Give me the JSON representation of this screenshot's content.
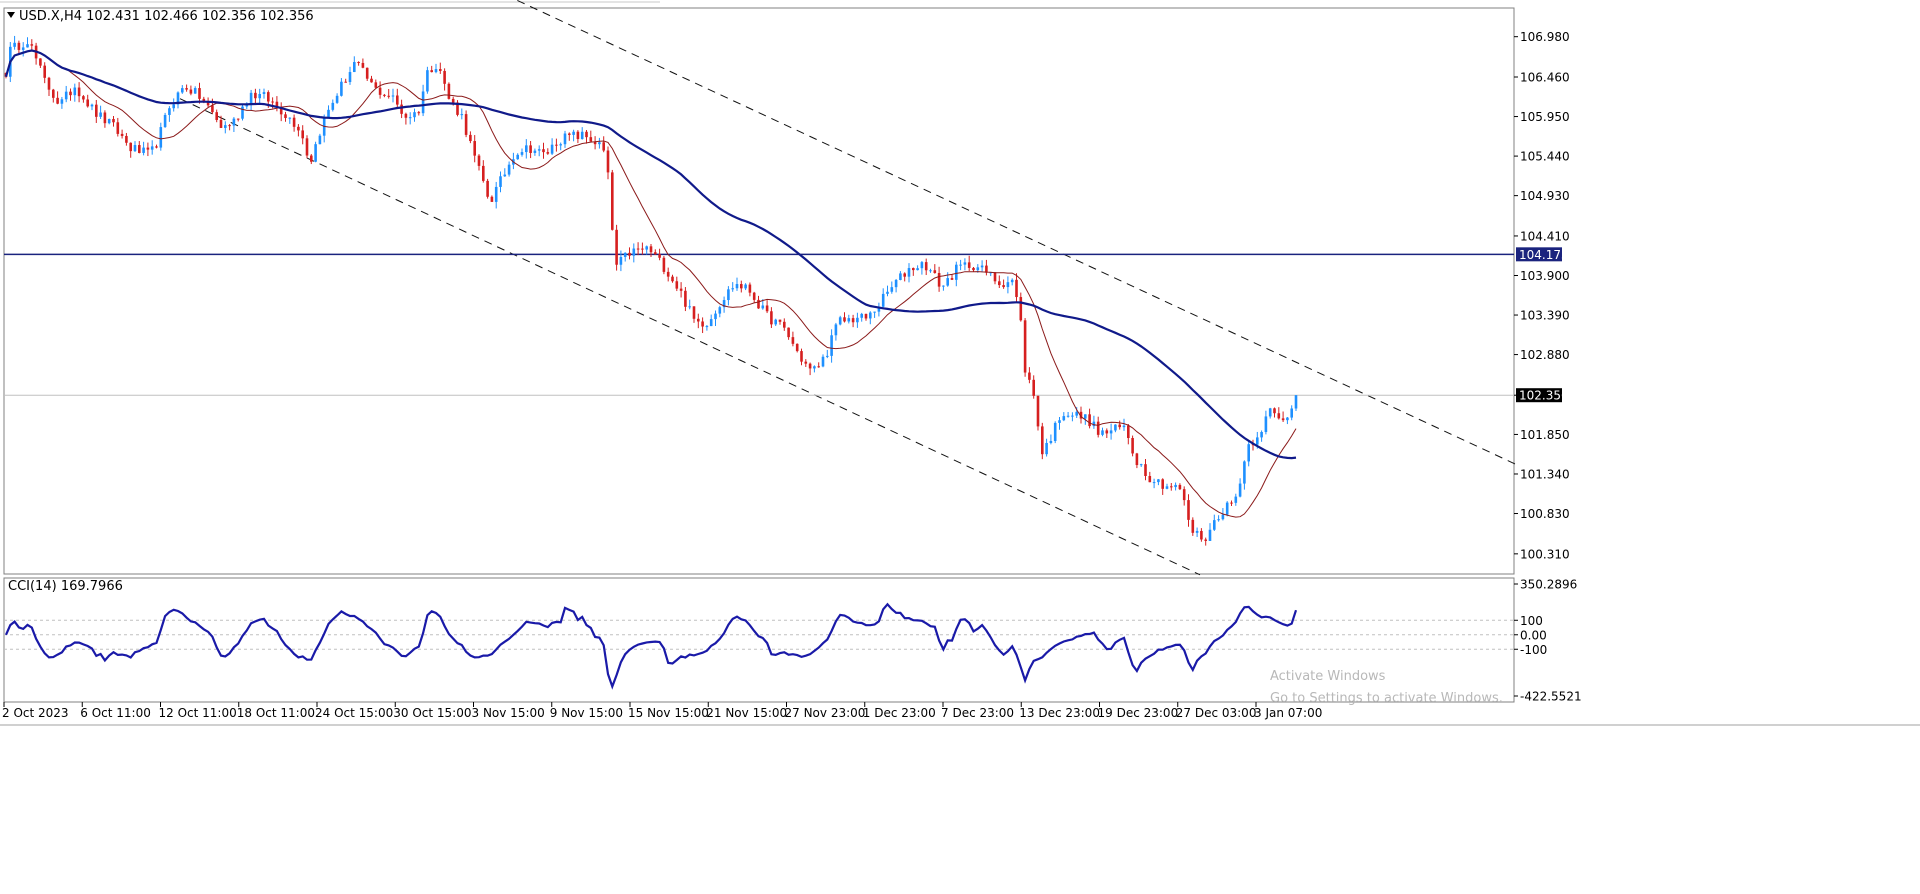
{
  "chart_data": [
    {
      "type": "candlestick",
      "symbol": "USD.X",
      "timeframe": "H4",
      "header_ohlc": {
        "open": "102.431",
        "high": "102.466",
        "low": "102.356",
        "close": "102.356"
      },
      "y_axis_ticks": [
        "106.980",
        "106.460",
        "105.950",
        "105.440",
        "104.930",
        "104.410",
        "103.900",
        "103.390",
        "102.880",
        "102.356",
        "101.850",
        "101.340",
        "100.830",
        "100.310"
      ],
      "ylim": [
        100.05,
        107.35
      ],
      "x_axis_ticks": [
        "2 Oct 2023",
        "6 Oct 11:00",
        "12 Oct 11:00",
        "18 Oct 11:00",
        "24 Oct 15:00",
        "30 Oct 15:00",
        "3 Nov 15:00",
        "9 Nov 15:00",
        "15 Nov 15:00",
        "21 Nov 15:00",
        "27 Nov 23:00",
        "1 Dec 23:00",
        "7 Dec 23:00",
        "13 Dec 23:00",
        "19 Dec 23:00",
        "27 Dec 03:00",
        "3 Jan 07:00"
      ],
      "horizontal_level": {
        "value": 104.173,
        "label": "104.173",
        "color": "#1a237e"
      },
      "last_price": {
        "value": 102.356,
        "label": "102.356"
      },
      "price_anchors": [
        [
          0,
          106.1
        ],
        [
          10,
          106.8
        ],
        [
          28,
          106.95
        ],
        [
          45,
          106.4
        ],
        [
          60,
          106.1
        ],
        [
          75,
          106.35
        ],
        [
          95,
          106.0
        ],
        [
          115,
          105.8
        ],
        [
          130,
          105.55
        ],
        [
          150,
          105.45
        ],
        [
          158,
          105.65
        ],
        [
          170,
          106.1
        ],
        [
          185,
          106.35
        ],
        [
          200,
          106.2
        ],
        [
          212,
          106.0
        ],
        [
          222,
          105.8
        ],
        [
          235,
          105.9
        ],
        [
          250,
          106.25
        ],
        [
          265,
          106.2
        ],
        [
          280,
          106.05
        ],
        [
          300,
          105.8
        ],
        [
          310,
          105.35
        ],
        [
          322,
          105.85
        ],
        [
          335,
          106.2
        ],
        [
          355,
          106.65
        ],
        [
          375,
          106.3
        ],
        [
          392,
          106.2
        ],
        [
          405,
          105.95
        ],
        [
          418,
          106.0
        ],
        [
          428,
          106.55
        ],
        [
          438,
          106.65
        ],
        [
          448,
          106.2
        ],
        [
          462,
          105.95
        ],
        [
          475,
          105.4
        ],
        [
          490,
          104.85
        ],
        [
          502,
          105.15
        ],
        [
          515,
          105.5
        ],
        [
          530,
          105.55
        ],
        [
          545,
          105.45
        ],
        [
          558,
          105.65
        ],
        [
          572,
          105.7
        ],
        [
          585,
          105.7
        ],
        [
          598,
          105.6
        ],
        [
          606,
          105.45
        ],
        [
          610,
          104.9
        ],
        [
          615,
          104.0
        ],
        [
          630,
          104.2
        ],
        [
          648,
          104.25
        ],
        [
          665,
          104.0
        ],
        [
          680,
          103.7
        ],
        [
          695,
          103.3
        ],
        [
          708,
          103.3
        ],
        [
          720,
          103.55
        ],
        [
          735,
          103.8
        ],
        [
          750,
          103.7
        ],
        [
          765,
          103.4
        ],
        [
          785,
          103.2
        ],
        [
          800,
          102.85
        ],
        [
          812,
          102.65
        ],
        [
          825,
          102.85
        ],
        [
          838,
          103.3
        ],
        [
          855,
          103.35
        ],
        [
          868,
          103.35
        ],
        [
          880,
          103.55
        ],
        [
          895,
          103.8
        ],
        [
          910,
          104.0
        ],
        [
          925,
          104.05
        ],
        [
          942,
          103.75
        ],
        [
          958,
          104.0
        ],
        [
          972,
          104.05
        ],
        [
          985,
          103.95
        ],
        [
          1000,
          103.8
        ],
        [
          1012,
          103.85
        ],
        [
          1020,
          103.4
        ],
        [
          1025,
          102.7
        ],
        [
          1035,
          102.3
        ],
        [
          1042,
          101.6
        ],
        [
          1052,
          101.85
        ],
        [
          1062,
          102.15
        ],
        [
          1075,
          102.1
        ],
        [
          1088,
          102.05
        ],
        [
          1100,
          101.85
        ],
        [
          1112,
          101.9
        ],
        [
          1125,
          101.95
        ],
        [
          1135,
          101.55
        ],
        [
          1150,
          101.3
        ],
        [
          1165,
          101.2
        ],
        [
          1180,
          101.15
        ],
        [
          1192,
          100.6
        ],
        [
          1205,
          100.5
        ],
        [
          1220,
          100.85
        ],
        [
          1235,
          101.0
        ],
        [
          1248,
          101.7
        ],
        [
          1260,
          101.9
        ],
        [
          1270,
          102.15
        ],
        [
          1282,
          102.0
        ],
        [
          1292,
          102.2
        ],
        [
          1300,
          102.36
        ]
      ],
      "overlays": [
        {
          "name": "",
          "type": "moving-average",
          "color": "#8b1a1a",
          "period": 14
        },
        {
          "name": "",
          "type": "moving-average",
          "color": "#101a8a",
          "period": 60
        }
      ],
      "trend_channel": [
        {
          "from": [
            365,
            108.36
          ],
          "to": [
            1515,
            101.47
          ]
        },
        {
          "from": [
            180,
            106.18
          ],
          "to": [
            1200,
            100.04
          ]
        }
      ]
    },
    {
      "type": "line",
      "name": "CCI(14)",
      "header_value": "169.7966",
      "y_axis_ticks": [
        "350.2896",
        "100",
        "0.00",
        "-100",
        "-422.5521"
      ],
      "ylim": [
        -422.5521,
        350.2896
      ],
      "levels": [
        100,
        0,
        -100
      ],
      "color": "#1a1aa8"
    }
  ],
  "watermark": {
    "line1": "Activate Windows",
    "line2": "Go to Settings to activate Windows."
  },
  "colors": {
    "bull": "#1e90ff",
    "bear": "#d61f1f",
    "grid": "#c0c0c0",
    "background": "#ffffff"
  }
}
